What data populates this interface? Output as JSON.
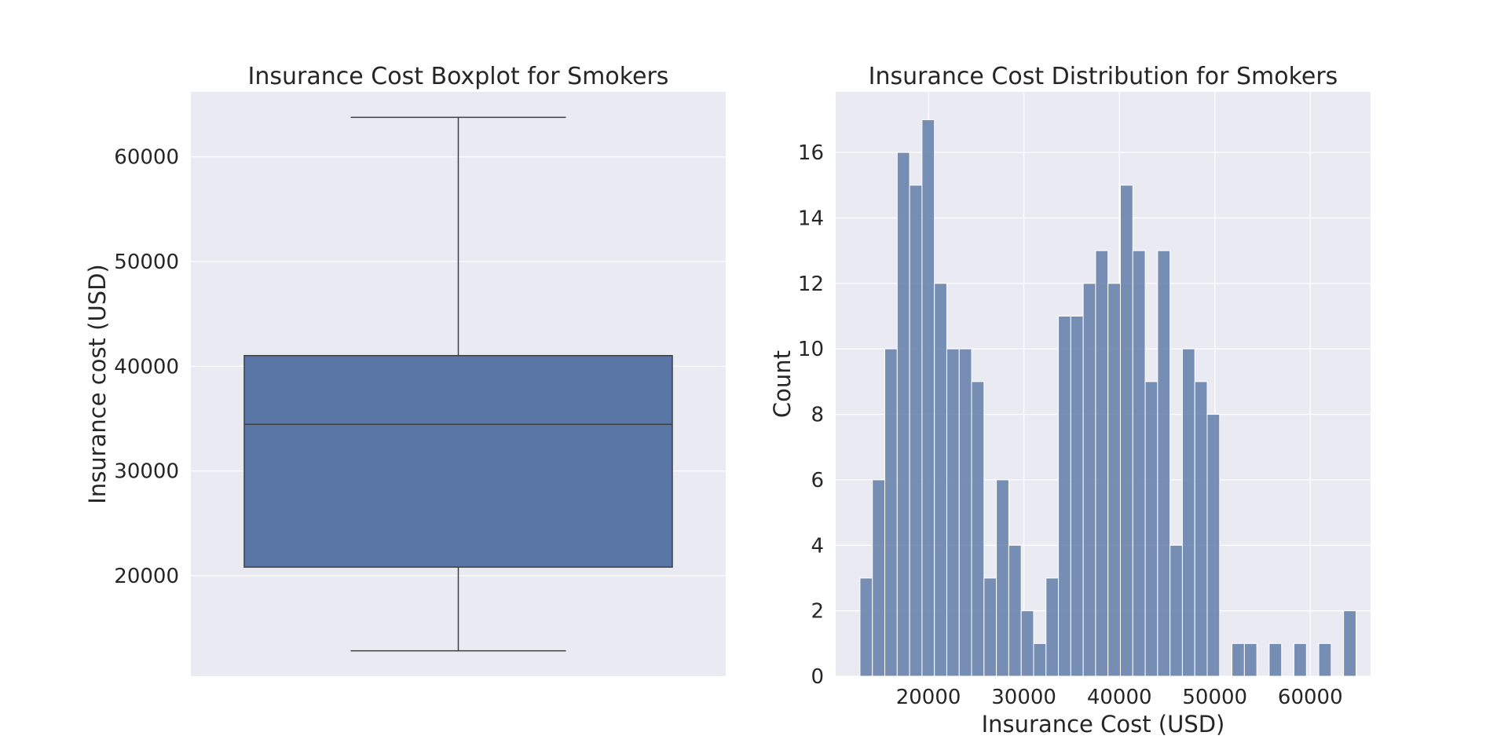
{
  "chart_data": [
    {
      "type": "box",
      "title": "Insurance Cost Boxplot for Smokers",
      "xlabel": "",
      "ylabel": "Insurance cost (USD)",
      "ylim": [
        10400,
        66200
      ],
      "yticks": [
        20000,
        30000,
        40000,
        50000,
        60000
      ],
      "box": {
        "whisker_low": 12830,
        "q1": 20820,
        "median": 34460,
        "q3": 41020,
        "whisker_high": 63770
      },
      "grid": true,
      "colors": {
        "background": "#eaeaf2",
        "box": "#5975a4",
        "line": "#3f3f3f",
        "grid": "#ffffff"
      }
    },
    {
      "type": "bar",
      "subtype": "histogram",
      "title": "Insurance Cost Distribution for Smokers",
      "xlabel": "Insurance Cost (USD)",
      "ylabel": "Count",
      "xlim": [
        10285,
        66311
      ],
      "ylim": [
        0,
        17.85
      ],
      "xticks": [
        20000,
        30000,
        40000,
        50000,
        60000
      ],
      "yticks": [
        0,
        2,
        4,
        6,
        8,
        10,
        12,
        14,
        16
      ],
      "bin_start": 12832,
      "bin_width": 1298.85,
      "counts": [
        3,
        6,
        10,
        16,
        15,
        17,
        12,
        10,
        10,
        9,
        3,
        6,
        4,
        2,
        1,
        3,
        11,
        11,
        12,
        13,
        12,
        15,
        13,
        9,
        13,
        4,
        10,
        9,
        8,
        0,
        1,
        1,
        0,
        1,
        0,
        1,
        0,
        1,
        0,
        2
      ],
      "grid": true,
      "colors": {
        "background": "#eaeaf2",
        "bar": "#5975a4",
        "bar_edge": "#ffffff",
        "grid": "#ffffff"
      }
    }
  ]
}
